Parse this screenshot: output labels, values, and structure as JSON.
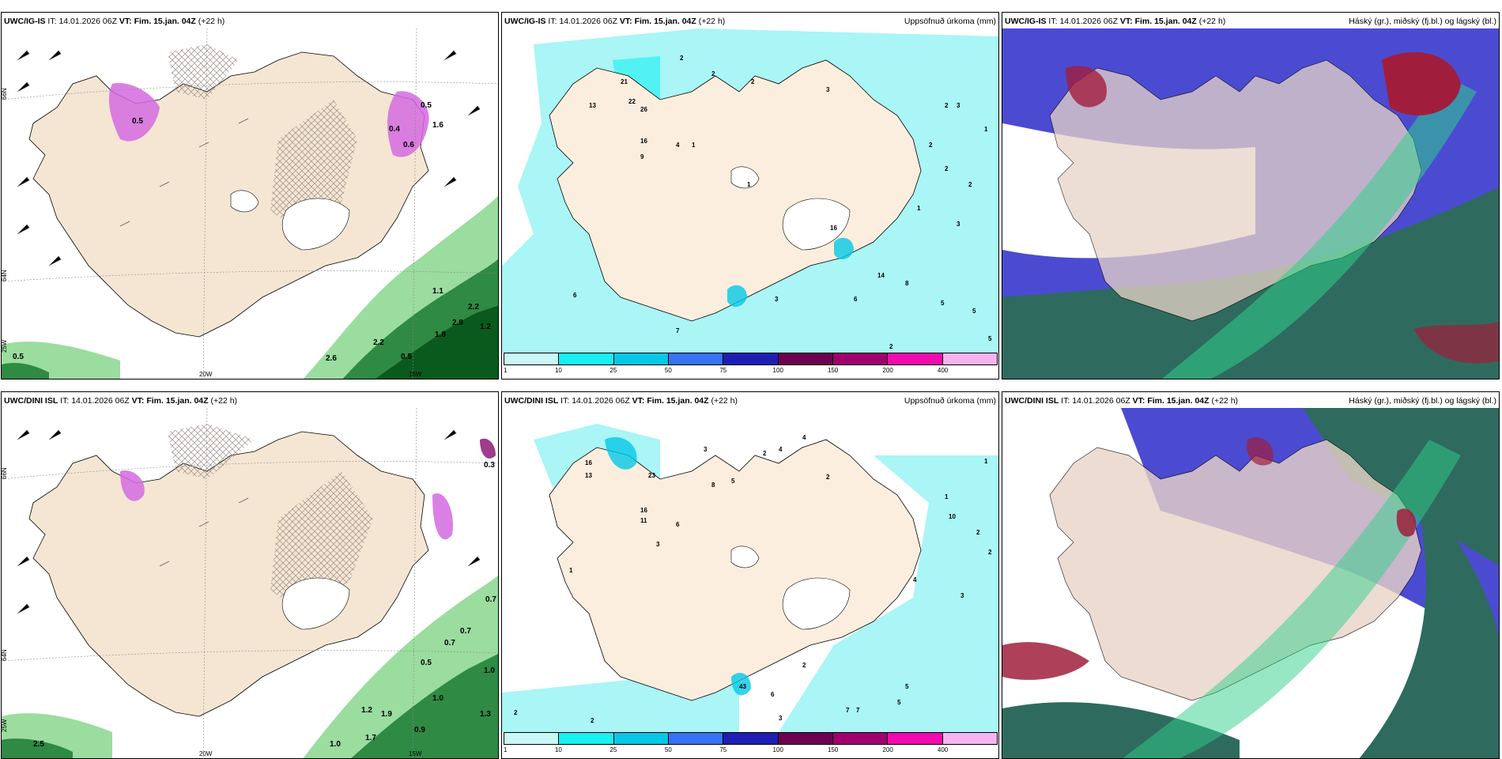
{
  "panels": [
    {
      "id": "p1",
      "model": "UWC/IG-IS",
      "it_label": "IT:",
      "it": "14.01.2026 06Z",
      "vt_label": "VT:",
      "vt": "Fim. 15.jan. 04Z",
      "lead": "(+22 h)",
      "right_title": "",
      "kind": "wind",
      "lon_labels": [
        "20W",
        "15W"
      ],
      "lat_labels": [
        "66N",
        "64N"
      ],
      "corner_label": "25W",
      "values": [
        "0.5",
        "2.6",
        "2.2",
        "0.5",
        "1.1",
        "2.2",
        "2.9",
        "1.2",
        "1.8",
        "0.5",
        "0.4",
        "0.6",
        "1.6",
        "0.5"
      ]
    },
    {
      "id": "p2",
      "model": "UWC/IG-IS",
      "it_label": "IT:",
      "it": "14.01.2026 06Z",
      "vt_label": "VT:",
      "vt": "Fim. 15.jan. 04Z",
      "lead": "(+22 h)",
      "right_title": "Uppsöfnuð úrkoma (mm)",
      "kind": "precip",
      "values": [
        "2",
        "2",
        "2",
        "21",
        "22",
        "26",
        "13",
        "16",
        "9",
        "1",
        "4",
        "3",
        "2",
        "6",
        "14",
        "8",
        "6",
        "5",
        "5",
        "5",
        "2",
        "3",
        "3",
        "1",
        "2",
        "7",
        "16",
        "3",
        "1",
        "1",
        "2",
        "2"
      ]
    },
    {
      "id": "p3",
      "model": "UWC/IG-IS",
      "it_label": "IT:",
      "it": "14.01.2026 06Z",
      "vt_label": "VT:",
      "vt": "Fim. 15.jan. 04Z",
      "lead": "(+22 h)",
      "right_title": "Háský (gr.), miðský (fj.bl.) og lágský (bl.)",
      "kind": "cloud"
    },
    {
      "id": "p4",
      "model": "UWC/DINI ISL",
      "it_label": "IT:",
      "it": "14.01.2026 06Z",
      "vt_label": "VT:",
      "vt": "Fim. 15.jan. 04Z",
      "lead": "(+22 h)",
      "right_title": "",
      "kind": "wind",
      "lon_labels": [
        "20W",
        "15W"
      ],
      "lat_labels": [
        "66N",
        "64N"
      ],
      "corner_label": "25W",
      "values": [
        "2.5",
        "1.0",
        "1.7",
        "1.2",
        "0.9",
        "1.0",
        "0.7",
        "0.7",
        "1.0",
        "1.3",
        "0.7",
        "0.3",
        "1.9",
        "0.5"
      ]
    },
    {
      "id": "p5",
      "model": "UWC/DINI ISL",
      "it_label": "IT:",
      "it": "14.01.2026 06Z",
      "vt_label": "VT:",
      "vt": "Fim. 15.jan. 04Z",
      "lead": "(+22 h)",
      "right_title": "Uppsöfnuð úrkoma (mm)",
      "kind": "precip",
      "values": [
        "3",
        "2",
        "4",
        "4",
        "2",
        "16",
        "13",
        "23",
        "16",
        "11",
        "6",
        "3",
        "8",
        "5",
        "43",
        "6",
        "3",
        "7",
        "7",
        "5",
        "5",
        "2",
        "1",
        "10",
        "2",
        "2",
        "3",
        "4",
        "2",
        "1",
        "2",
        "1"
      ]
    },
    {
      "id": "p6",
      "model": "UWC/DINI ISL",
      "it_label": "IT:",
      "it": "14.01.2026 06Z",
      "vt_label": "VT:",
      "vt": "Fim. 15.jan. 04Z",
      "lead": "(+22 h)",
      "right_title": "Háský (gr.), miðský (fj.bl.) og lágský (bl.)",
      "kind": "cloud"
    }
  ],
  "colorbar": {
    "ticks": [
      "1",
      "10",
      "25",
      "50",
      "75",
      "100",
      "150",
      "200",
      "400"
    ],
    "colors": [
      "#c9f7f7",
      "#19f0f0",
      "#05c8e6",
      "#3773f5",
      "#1e1eb4",
      "#6e0050",
      "#a0006e",
      "#f00aaf",
      "#f5b4f0"
    ]
  },
  "colors": {
    "land": "#f5e6d3",
    "sea_precip": "#aaf5f5",
    "wind_green": "#7acf83",
    "wind_dark": "#0a5a1e",
    "hatch": "#9a8f88",
    "snow_purple": "#d46ae0",
    "cloud_blue": "#4b4bd2",
    "cloud_teal": "#2e6b5e",
    "cloud_red": "#a01e3c"
  }
}
